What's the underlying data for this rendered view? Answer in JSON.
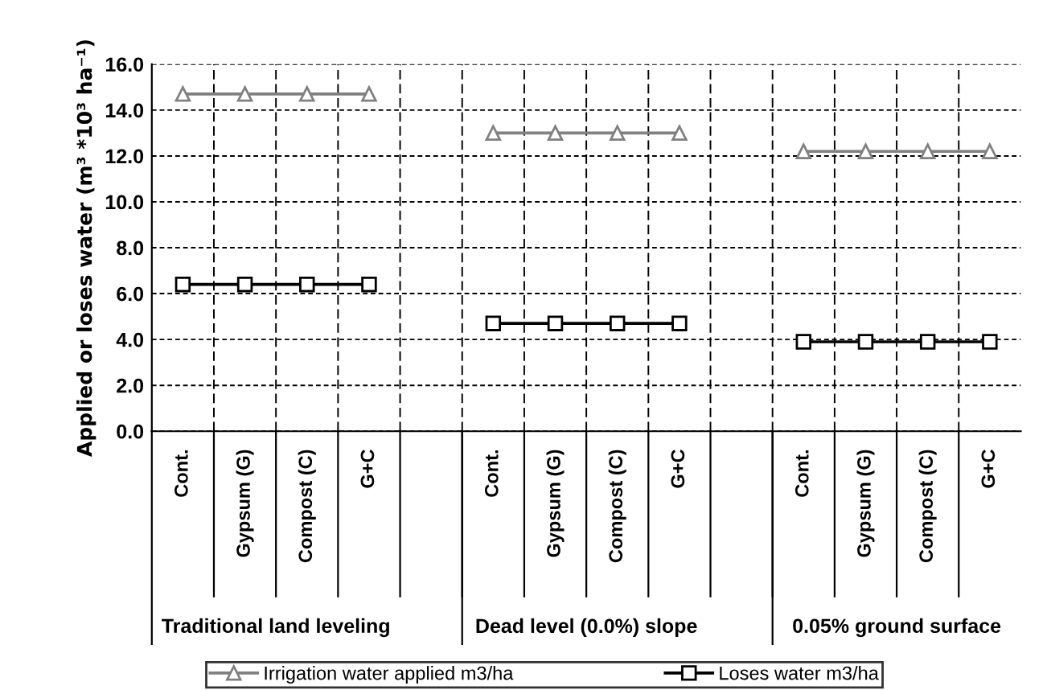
{
  "chart_data": {
    "type": "line",
    "ylabel": "Applied or loses water (m³ *10³ ha⁻¹)",
    "categories": [
      "Cont.",
      "Gypsum (G)",
      "Compost (C)",
      "G+C",
      null,
      "Cont.",
      "Gypsum (G)",
      "Compost (C)",
      "G+C",
      null,
      "Cont.",
      "Gypsum (G)",
      "Compost (C)",
      "G+C"
    ],
    "series": [
      {
        "name": "Irrigation water applied m3/ha",
        "color": "#808080",
        "marker": "triangle",
        "values": [
          14.7,
          14.7,
          14.7,
          14.7,
          null,
          13.0,
          13.0,
          13.0,
          13.0,
          null,
          12.2,
          12.2,
          12.2,
          12.2
        ]
      },
      {
        "name": "Loses water m3/ha",
        "color": "#000000",
        "marker": "square",
        "values": [
          6.4,
          6.4,
          6.4,
          6.4,
          null,
          4.7,
          4.7,
          4.7,
          4.7,
          null,
          3.9,
          3.9,
          3.9,
          3.9
        ]
      }
    ],
    "annotations": [
      "Traditional land leveling",
      "Dead level (0.0%) slope",
      "0.05% ground surface"
    ],
    "ylim": [
      0,
      16
    ],
    "yticks": [
      {
        "value": 0,
        "label": "0.0"
      },
      {
        "value": 2,
        "label": "2.0"
      },
      {
        "value": 4,
        "label": "4.0"
      },
      {
        "value": 6,
        "label": "6.0"
      },
      {
        "value": 8,
        "label": "8.0"
      },
      {
        "value": 10,
        "label": "10.0"
      },
      {
        "value": 12,
        "label": "12.0"
      },
      {
        "value": 14,
        "label": "14.0"
      },
      {
        "value": 16,
        "label": "16.0"
      }
    ],
    "grid": true,
    "legend": "bottom",
    "line_style": "solid"
  }
}
